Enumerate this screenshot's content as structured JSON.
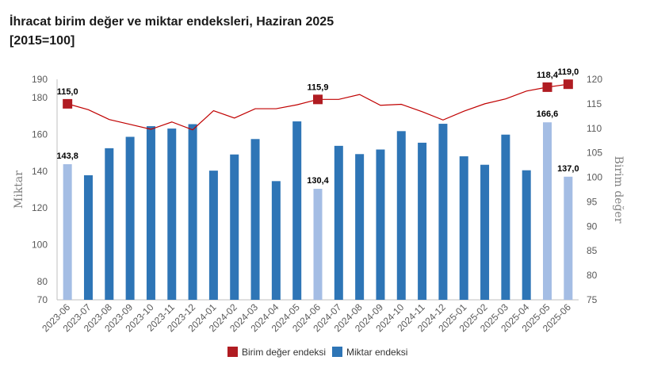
{
  "title": "İhracat birim değer ve miktar endeksleri, Haziran 2025",
  "subtitle": "[2015=100]",
  "chart_data": {
    "type": "bar",
    "categories": [
      "2023-06",
      "2023-07",
      "2023-08",
      "2023-09",
      "2023-10",
      "2023-11",
      "2023-12",
      "2024-01",
      "2024-02",
      "2024-03",
      "2024-04",
      "2024-05",
      "2024-06",
      "2024-07",
      "2024-08",
      "2024-09",
      "2024-10",
      "2024-11",
      "2024-12",
      "2025-01",
      "2025-02",
      "2025-03",
      "2025-04",
      "2025-05",
      "2025-06"
    ],
    "series": [
      {
        "name": "Miktar endeksi",
        "type": "bar",
        "axis": "left",
        "color": "#2e75b6",
        "highlight_color": "#a4bde4",
        "values": [
          143.8,
          137.8,
          152.5,
          158.7,
          164.5,
          163.2,
          165.6,
          140.3,
          149.1,
          157.5,
          134.6,
          167.1,
          130.4,
          153.8,
          149.3,
          151.8,
          161.8,
          155.5,
          165.8,
          148.1,
          143.5,
          159.9,
          140.5,
          166.6,
          137.0
        ],
        "highlight_indices": [
          0,
          12,
          23,
          24
        ]
      },
      {
        "name": "Birim değer endeksi",
        "type": "line",
        "axis": "right",
        "color": "#c00000",
        "marker_color": "#b01c22",
        "values": [
          115.0,
          113.8,
          111.8,
          110.8,
          109.8,
          111.3,
          109.7,
          113.6,
          112.1,
          114.0,
          114.0,
          114.8,
          115.9,
          115.9,
          116.9,
          114.7,
          114.9,
          113.4,
          111.7,
          113.5,
          115.0,
          116.0,
          117.6,
          118.4,
          119.0
        ],
        "marker_indices": [
          0,
          12,
          23,
          24
        ]
      }
    ],
    "data_labels": {
      "bars": [
        {
          "index": 0,
          "text": "143,8"
        },
        {
          "index": 12,
          "text": "130,4"
        },
        {
          "index": 23,
          "text": "166,6"
        },
        {
          "index": 24,
          "text": "137,0"
        }
      ],
      "line": [
        {
          "index": 0,
          "text": "115,0"
        },
        {
          "index": 12,
          "text": "115,9"
        },
        {
          "index": 23,
          "text": "118,4"
        },
        {
          "index": 24,
          "text": "119,0"
        }
      ]
    },
    "ylabel": "Miktar",
    "y2label": "Birim değer",
    "ylim": [
      70,
      190
    ],
    "yticks": [
      70,
      80,
      100,
      120,
      140,
      160,
      180,
      190
    ],
    "y2lim": [
      75,
      120
    ],
    "y2ticks": [
      75,
      80,
      85,
      90,
      95,
      100,
      105,
      110,
      115,
      120
    ],
    "grid": false,
    "legend_position": "bottom"
  }
}
